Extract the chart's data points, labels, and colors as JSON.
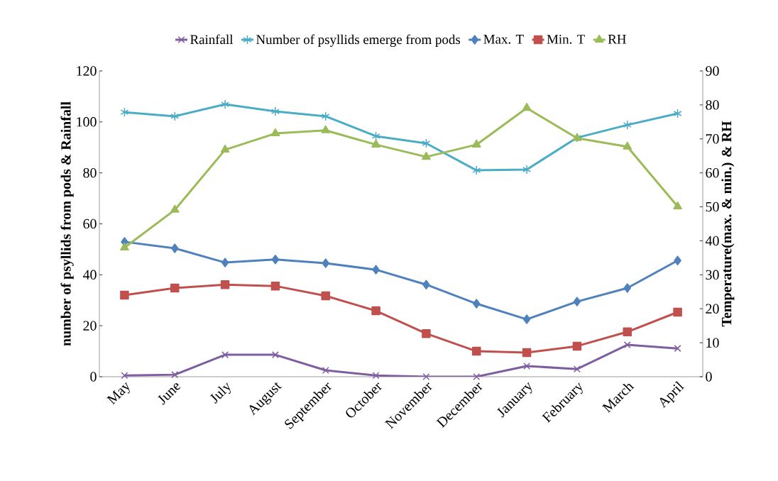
{
  "chart_data": {
    "type": "line",
    "categories": [
      "May",
      "June",
      "July",
      "August",
      "September",
      "October",
      "November",
      "December",
      "January",
      "February",
      "March",
      "April"
    ],
    "ylabel": "number of psyllids from pods & Rainfall",
    "y2label": "Temperature(max. & min.) & RH",
    "ylim": [
      0,
      120
    ],
    "yticks": [
      0,
      20,
      40,
      60,
      80,
      100,
      120
    ],
    "y2lim": [
      0,
      90
    ],
    "y2ticks": [
      0,
      10,
      20,
      30,
      40,
      50,
      60,
      70,
      80,
      90
    ],
    "legend": "top",
    "grid": false,
    "line_style": "solid",
    "series": [
      {
        "name": "Rainfall",
        "color": "#7e5ea0",
        "marker": "cross",
        "values": [
          0.5,
          0.8,
          8.6,
          8.6,
          2.5,
          0.5,
          0,
          0,
          4.2,
          3,
          12.5,
          11.1
        ]
      },
      {
        "name": "Number of psyllids emerge from pods",
        "color": "#4bacc6",
        "marker": "cross",
        "values": [
          103.8,
          102.2,
          106.9,
          104.1,
          102.2,
          94.4,
          91.6,
          81,
          81.3,
          93.8,
          98.8,
          103.3
        ]
      },
      {
        "name": "Max. T",
        "color": "#4f81bd",
        "marker": "diamond",
        "axis": "y2",
        "values": [
          39.7,
          37.8,
          33.6,
          34.5,
          33.4,
          31.5,
          27.1,
          21.5,
          16.9,
          22.1,
          26.1,
          34.2
        ]
      },
      {
        "name": "Min. T",
        "color": "#c0504d",
        "marker": "square",
        "axis": "y2",
        "values": [
          24.0,
          26.1,
          27.1,
          26.7,
          23.8,
          19.4,
          12.7,
          7.5,
          7.1,
          9.0,
          13.2,
          19.0
        ]
      },
      {
        "name": "RH",
        "color": "#9bbb59",
        "marker": "triangle",
        "axis": "y2",
        "values": [
          38.0,
          49.1,
          66.8,
          71.6,
          72.5,
          68.3,
          64.7,
          68.3,
          79.1,
          70.2,
          67.7,
          50.1
        ]
      }
    ]
  }
}
